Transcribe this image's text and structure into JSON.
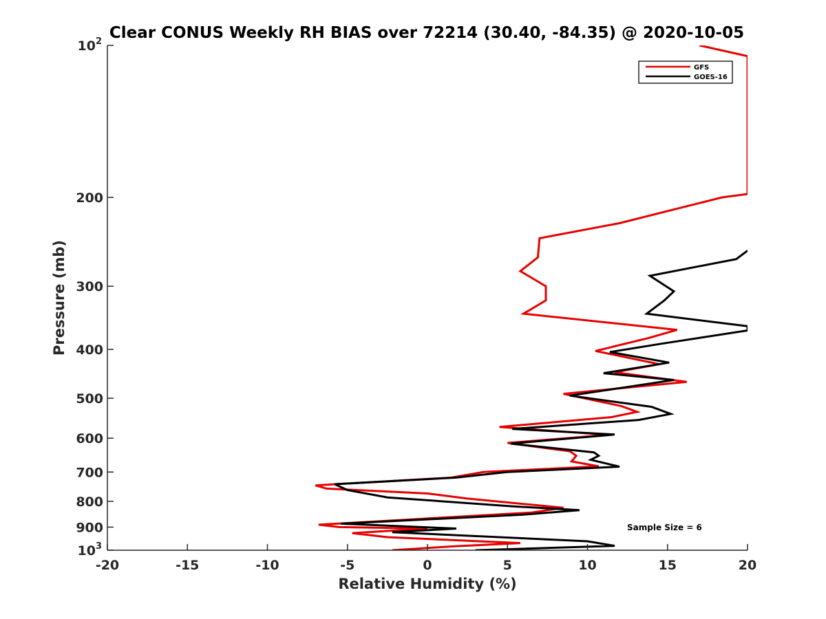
{
  "chart_data": {
    "type": "line",
    "title": "Clear CONUS Weekly RH BIAS over 72214 (30.40, -84.35) @ 2020-10-05",
    "xlabel": "Relative Humidity (%)",
    "ylabel": "Pressure (mb)",
    "xlim": [
      -20,
      20
    ],
    "ylim": [
      100,
      1000
    ],
    "y_scale": "log",
    "y_direction": "reverse",
    "grid": false,
    "x_ticks": [
      {
        "value": -20,
        "label": "-20"
      },
      {
        "value": -15,
        "label": "-15"
      },
      {
        "value": -10,
        "label": "-10"
      },
      {
        "value": -5,
        "label": "-5"
      },
      {
        "value": 0,
        "label": "0"
      },
      {
        "value": 5,
        "label": "5"
      },
      {
        "value": 10,
        "label": "10"
      },
      {
        "value": 15,
        "label": "15"
      },
      {
        "value": 20,
        "label": "20"
      }
    ],
    "y_ticks": [
      {
        "value": 100,
        "label": "10",
        "exp": "2"
      },
      {
        "value": 200,
        "label": "200"
      },
      {
        "value": 300,
        "label": "300"
      },
      {
        "value": 400,
        "label": "400"
      },
      {
        "value": 500,
        "label": "500"
      },
      {
        "value": 600,
        "label": "600"
      },
      {
        "value": 700,
        "label": "700"
      },
      {
        "value": 800,
        "label": "800"
      },
      {
        "value": 900,
        "label": "900"
      },
      {
        "value": 1000,
        "label": "10",
        "exp": "3"
      }
    ],
    "legend": {
      "position": "top-right",
      "entries": [
        "GFS",
        "GOES-16"
      ]
    },
    "annotations": [
      "Sample Size = 6"
    ],
    "series": [
      {
        "name": "GFS",
        "color": "#e60000",
        "points": [
          [
            17.0,
            100
          ],
          [
            20.0,
            105
          ],
          [
            20.0,
            197
          ],
          [
            18.4,
            200
          ],
          [
            12.0,
            225
          ],
          [
            7.0,
            241
          ],
          [
            6.9,
            263
          ],
          [
            5.8,
            280
          ],
          [
            7.4,
            300
          ],
          [
            7.4,
            320
          ],
          [
            6.0,
            340
          ],
          [
            15.6,
            366
          ],
          [
            13.8,
            380
          ],
          [
            10.5,
            403
          ],
          [
            14.5,
            428
          ],
          [
            11.7,
            444
          ],
          [
            16.2,
            464
          ],
          [
            8.5,
            490
          ],
          [
            12.1,
            518
          ],
          [
            13.1,
            532
          ],
          [
            11.5,
            545
          ],
          [
            4.5,
            570
          ],
          [
            11.3,
            591
          ],
          [
            5.0,
            613
          ],
          [
            8.9,
            637
          ],
          [
            9.3,
            650
          ],
          [
            9.0,
            667
          ],
          [
            10.7,
            682
          ],
          [
            3.5,
            700
          ],
          [
            1.5,
            718
          ],
          [
            -7.0,
            744
          ],
          [
            -6.3,
            755
          ],
          [
            0.0,
            772
          ],
          [
            2.5,
            790
          ],
          [
            8.5,
            824
          ],
          [
            6.5,
            842
          ],
          [
            -6.8,
            890
          ],
          [
            -5.5,
            900
          ],
          [
            0.0,
            906
          ],
          [
            -4.7,
            925
          ],
          [
            -2.5,
            942
          ],
          [
            5.8,
            968
          ],
          [
            1.5,
            983
          ],
          [
            -2.2,
            1000
          ]
        ]
      },
      {
        "name": "GOES-16",
        "color": "#000000",
        "points": [
          [
            20.0,
            255
          ],
          [
            19.3,
            265
          ],
          [
            13.9,
            286
          ],
          [
            15.4,
            307
          ],
          [
            14.8,
            320
          ],
          [
            13.7,
            340
          ],
          [
            20.0,
            360
          ],
          [
            20.0,
            367
          ],
          [
            14.6,
            390
          ],
          [
            11.4,
            405
          ],
          [
            15.1,
            425
          ],
          [
            11.0,
            446
          ],
          [
            15.4,
            460
          ],
          [
            8.9,
            494
          ],
          [
            14.0,
            520
          ],
          [
            15.2,
            537
          ],
          [
            13.2,
            552
          ],
          [
            5.3,
            575
          ],
          [
            11.7,
            590
          ],
          [
            5.2,
            615
          ],
          [
            10.4,
            640
          ],
          [
            10.7,
            650
          ],
          [
            10.2,
            662
          ],
          [
            12.0,
            683
          ],
          [
            5.0,
            700
          ],
          [
            1.8,
            718
          ],
          [
            -5.8,
            740
          ],
          [
            -5.0,
            760
          ],
          [
            -2.5,
            786
          ],
          [
            5.2,
            818
          ],
          [
            9.5,
            833
          ],
          [
            6.0,
            850
          ],
          [
            -5.4,
            886
          ],
          [
            1.8,
            906
          ],
          [
            -2.2,
            921
          ],
          [
            10.0,
            960
          ],
          [
            11.7,
            980
          ],
          [
            3.0,
            1000
          ]
        ]
      }
    ]
  }
}
